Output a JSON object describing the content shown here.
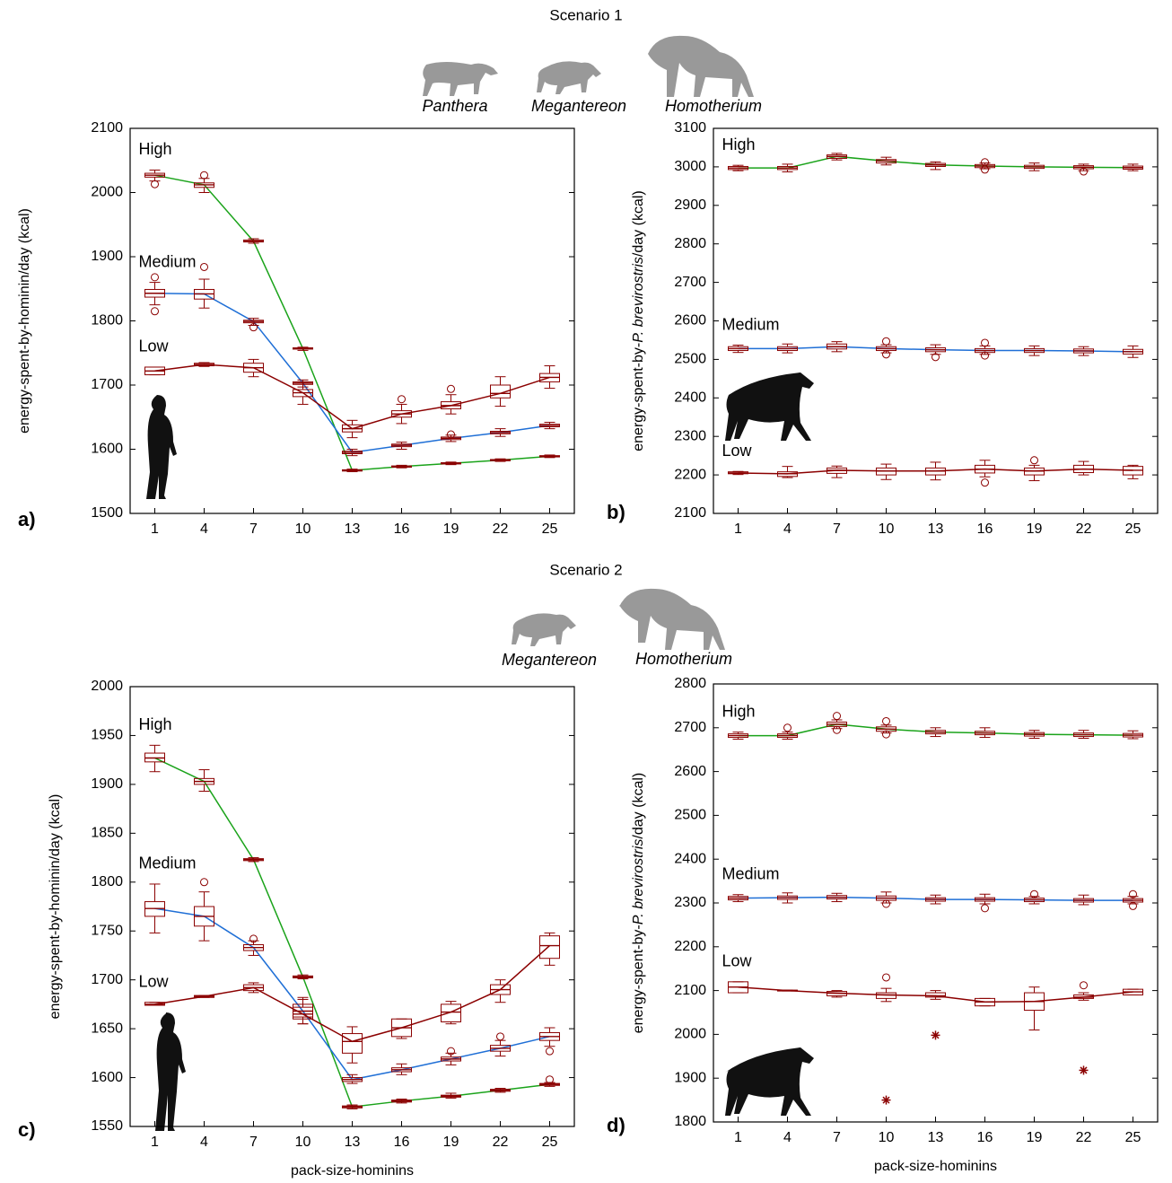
{
  "figure": {
    "scenario_1": {
      "title": "Scenario 1",
      "animals": [
        "Panthera",
        "Megantereon",
        "Homotherium"
      ]
    },
    "scenario_2": {
      "title": "Scenario 2",
      "animals": [
        "Megantereon",
        "Homotherium"
      ]
    }
  },
  "chart_data": [
    {
      "type": "box",
      "panel_label": "a)",
      "y_label": {
        "prefix": "energy-spent-by-hominin/day (kcal)"
      },
      "categories": [
        1,
        4,
        7,
        10,
        13,
        16,
        19,
        22,
        25
      ],
      "ylim": [
        1500,
        2100
      ],
      "yticks": [
        1500,
        1600,
        1700,
        1800,
        1900,
        2000,
        2100
      ],
      "box_color": "#8b0000",
      "series": [
        {
          "name": "High",
          "color": "#1aa31a",
          "values": [
            2027,
            2012,
            1924,
            1757,
            1567,
            1573,
            1578,
            1583,
            1589
          ],
          "q1": [
            2024,
            2008,
            1923,
            1756,
            1566,
            1572,
            1577,
            1582,
            1588
          ],
          "q3": [
            2030,
            2015,
            1926,
            1758,
            1568,
            1574,
            1579,
            1584,
            1590
          ],
          "whisker_low": [
            2018,
            2000,
            1921,
            1754,
            1565,
            1571,
            1576,
            1581,
            1587
          ],
          "whisker_high": [
            2035,
            2022,
            1928,
            1759,
            1569,
            1575,
            1580,
            1585,
            1591
          ]
        },
        {
          "name": "Medium",
          "color": "#1f6fd6",
          "values": [
            1843,
            1842,
            1799,
            1703,
            1595,
            1606,
            1617,
            1626,
            1637
          ],
          "q1": [
            1837,
            1834,
            1797,
            1701,
            1593,
            1604,
            1615,
            1624,
            1635
          ],
          "q3": [
            1849,
            1849,
            1801,
            1705,
            1597,
            1608,
            1619,
            1628,
            1639
          ],
          "whisker_low": [
            1825,
            1820,
            1793,
            1697,
            1590,
            1600,
            1612,
            1620,
            1632
          ],
          "whisker_high": [
            1860,
            1865,
            1804,
            1708,
            1600,
            1611,
            1622,
            1632,
            1642
          ]
        },
        {
          "name": "Low",
          "color": "#8b0000",
          "values": [
            1722,
            1732,
            1727,
            1688,
            1632,
            1655,
            1668,
            1687,
            1712
          ],
          "q1": [
            1716,
            1730,
            1720,
            1682,
            1627,
            1650,
            1663,
            1680,
            1705
          ],
          "q3": [
            1728,
            1734,
            1734,
            1693,
            1638,
            1660,
            1674,
            1700,
            1718
          ],
          "whisker_low": [
            1716,
            1729,
            1713,
            1670,
            1618,
            1640,
            1655,
            1667,
            1695
          ],
          "whisker_high": [
            1728,
            1735,
            1740,
            1705,
            1645,
            1670,
            1685,
            1713,
            1730
          ]
        }
      ],
      "outliers": [
        {
          "x": 1,
          "y": 2013,
          "marker": "circle"
        },
        {
          "x": 4,
          "y": 2027,
          "marker": "circle"
        },
        {
          "x": 1,
          "y": 1868,
          "marker": "circle"
        },
        {
          "x": 1,
          "y": 1815,
          "marker": "circle"
        },
        {
          "x": 4,
          "y": 1884,
          "marker": "circle"
        },
        {
          "x": 7,
          "y": 1790,
          "marker": "circle"
        },
        {
          "x": 16,
          "y": 1678,
          "marker": "circle"
        },
        {
          "x": 19,
          "y": 1694,
          "marker": "circle"
        },
        {
          "x": 19,
          "y": 1623,
          "marker": "circle"
        }
      ]
    },
    {
      "type": "box",
      "panel_label": "b)",
      "y_label": {
        "prefix": "energy-spent-by-",
        "italic": "P. brevirostris",
        "suffix": "/day (kcal)"
      },
      "categories": [
        1,
        4,
        7,
        10,
        13,
        16,
        19,
        22,
        25
      ],
      "ylim": [
        2100,
        3100
      ],
      "yticks": [
        2100,
        2200,
        2300,
        2400,
        2500,
        2600,
        2700,
        2800,
        2900,
        3000,
        3100
      ],
      "box_color": "#8b0000",
      "series": [
        {
          "name": "High",
          "color": "#1aa31a",
          "values": [
            2997,
            2997,
            3027,
            3015,
            3005,
            3002,
            3000,
            2999,
            2998
          ],
          "q1": [
            2993,
            2993,
            3022,
            3010,
            3001,
            2998,
            2996,
            2995,
            2994
          ],
          "q3": [
            3001,
            3001,
            3031,
            3019,
            3009,
            3006,
            3004,
            3003,
            3002
          ],
          "whisker_low": [
            2990,
            2987,
            3018,
            3005,
            2993,
            2995,
            2990,
            2990,
            2990
          ],
          "whisker_high": [
            3004,
            3007,
            3035,
            3025,
            3013,
            3010,
            3010,
            3007,
            3007
          ]
        },
        {
          "name": "Medium",
          "color": "#1f6fd6",
          "values": [
            2528,
            2528,
            2533,
            2528,
            2525,
            2523,
            2523,
            2522,
            2520
          ],
          "q1": [
            2523,
            2523,
            2527,
            2523,
            2520,
            2518,
            2518,
            2517,
            2514
          ],
          "q3": [
            2533,
            2533,
            2540,
            2533,
            2530,
            2528,
            2528,
            2527,
            2526
          ],
          "whisker_low": [
            2518,
            2517,
            2520,
            2517,
            2513,
            2513,
            2510,
            2510,
            2505
          ],
          "whisker_high": [
            2537,
            2540,
            2546,
            2538,
            2538,
            2535,
            2535,
            2533,
            2535
          ]
        },
        {
          "name": "Low",
          "color": "#8b0000",
          "values": [
            2205,
            2203,
            2212,
            2210,
            2210,
            2215,
            2210,
            2215,
            2212
          ],
          "q1": [
            2203,
            2196,
            2204,
            2200,
            2200,
            2205,
            2200,
            2206,
            2200
          ],
          "q3": [
            2208,
            2208,
            2218,
            2218,
            2218,
            2225,
            2218,
            2225,
            2222
          ],
          "whisker_low": [
            2201,
            2193,
            2193,
            2188,
            2187,
            2195,
            2185,
            2200,
            2190
          ],
          "whisker_high": [
            2209,
            2222,
            2223,
            2228,
            2233,
            2238,
            2225,
            2235,
            2225
          ]
        }
      ],
      "outliers": [
        {
          "x": 16,
          "y": 3012,
          "marker": "circle"
        },
        {
          "x": 16,
          "y": 2993,
          "marker": "circle"
        },
        {
          "x": 22,
          "y": 2988,
          "marker": "circle"
        },
        {
          "x": 10,
          "y": 2547,
          "marker": "circle"
        },
        {
          "x": 10,
          "y": 2513,
          "marker": "circle"
        },
        {
          "x": 13,
          "y": 2506,
          "marker": "circle"
        },
        {
          "x": 16,
          "y": 2543,
          "marker": "circle"
        },
        {
          "x": 16,
          "y": 2510,
          "marker": "circle"
        },
        {
          "x": 16,
          "y": 2180,
          "marker": "circle"
        },
        {
          "x": 19,
          "y": 2238,
          "marker": "circle"
        }
      ]
    },
    {
      "type": "box",
      "panel_label": "c)",
      "y_label": {
        "prefix": "energy-spent-by-hominin/day (kcal)"
      },
      "x_label": "pack-size-hominins",
      "categories": [
        1,
        4,
        7,
        10,
        13,
        16,
        19,
        22,
        25
      ],
      "ylim": [
        1550,
        2000
      ],
      "yticks": [
        1550,
        1600,
        1650,
        1700,
        1750,
        1800,
        1850,
        1900,
        1950,
        2000
      ],
      "box_color": "#8b0000",
      "series": [
        {
          "name": "High",
          "color": "#1aa31a",
          "values": [
            1927,
            1903,
            1823,
            1703,
            1570,
            1576,
            1581,
            1587,
            1593
          ],
          "q1": [
            1923,
            1900,
            1822,
            1702,
            1569,
            1575,
            1580,
            1586,
            1592
          ],
          "q3": [
            1932,
            1906,
            1824,
            1704,
            1571,
            1577,
            1582,
            1588,
            1594
          ],
          "whisker_low": [
            1913,
            1893,
            1821,
            1701,
            1568,
            1574,
            1579,
            1585,
            1591
          ],
          "whisker_high": [
            1940,
            1915,
            1825,
            1705,
            1572,
            1578,
            1584,
            1589,
            1595
          ]
        },
        {
          "name": "Medium",
          "color": "#1f6fd6",
          "values": [
            1773,
            1765,
            1733,
            1668,
            1598,
            1608,
            1619,
            1630,
            1642
          ],
          "q1": [
            1765,
            1755,
            1730,
            1662,
            1596,
            1606,
            1617,
            1627,
            1638
          ],
          "q3": [
            1780,
            1775,
            1736,
            1675,
            1600,
            1610,
            1621,
            1633,
            1646
          ],
          "whisker_low": [
            1748,
            1740,
            1725,
            1655,
            1594,
            1603,
            1613,
            1622,
            1632
          ],
          "whisker_high": [
            1798,
            1790,
            1740,
            1682,
            1603,
            1614,
            1625,
            1638,
            1651
          ]
        },
        {
          "name": "Low",
          "color": "#8b0000",
          "values": [
            1675,
            1683,
            1692,
            1665,
            1637,
            1651,
            1667,
            1690,
            1735
          ],
          "q1": [
            1674,
            1682,
            1689,
            1660,
            1625,
            1642,
            1657,
            1685,
            1722
          ],
          "q3": [
            1677,
            1684,
            1695,
            1672,
            1645,
            1660,
            1675,
            1695,
            1745
          ],
          "whisker_low": [
            1674,
            1682,
            1687,
            1655,
            1615,
            1640,
            1655,
            1677,
            1715
          ],
          "whisker_high": [
            1677,
            1684,
            1697,
            1680,
            1652,
            1660,
            1678,
            1700,
            1748
          ]
        }
      ],
      "outliers": [
        {
          "x": 4,
          "y": 1800,
          "marker": "circle"
        },
        {
          "x": 7,
          "y": 1742,
          "marker": "circle"
        },
        {
          "x": 19,
          "y": 1627,
          "marker": "circle"
        },
        {
          "x": 22,
          "y": 1642,
          "marker": "circle"
        },
        {
          "x": 25,
          "y": 1627,
          "marker": "circle"
        },
        {
          "x": 25,
          "y": 1598,
          "marker": "circle"
        }
      ]
    },
    {
      "type": "box",
      "panel_label": "d)",
      "y_label": {
        "prefix": "energy-spent-by-",
        "italic": "P. brevirostris",
        "suffix": "/day (kcal)"
      },
      "x_label": "pack-size-hominins",
      "categories": [
        1,
        4,
        7,
        10,
        13,
        16,
        19,
        22,
        25
      ],
      "ylim": [
        1800,
        2800
      ],
      "yticks": [
        1800,
        1900,
        2000,
        2100,
        2200,
        2300,
        2400,
        2500,
        2600,
        2700,
        2800
      ],
      "box_color": "#8b0000",
      "series": [
        {
          "name": "High",
          "color": "#1aa31a",
          "values": [
            2682,
            2682,
            2708,
            2697,
            2690,
            2688,
            2685,
            2684,
            2683
          ],
          "q1": [
            2678,
            2678,
            2703,
            2692,
            2686,
            2684,
            2681,
            2680,
            2679
          ],
          "q3": [
            2686,
            2686,
            2713,
            2702,
            2694,
            2692,
            2689,
            2688,
            2687
          ],
          "whisker_low": [
            2674,
            2674,
            2698,
            2688,
            2680,
            2678,
            2676,
            2676,
            2675
          ],
          "whisker_high": [
            2690,
            2690,
            2718,
            2706,
            2700,
            2700,
            2694,
            2694,
            2693
          ]
        },
        {
          "name": "Medium",
          "color": "#1f6fd6",
          "values": [
            2311,
            2312,
            2313,
            2311,
            2308,
            2308,
            2307,
            2306,
            2306
          ],
          "q1": [
            2307,
            2308,
            2309,
            2306,
            2304,
            2304,
            2303,
            2302,
            2302
          ],
          "q3": [
            2315,
            2316,
            2317,
            2316,
            2312,
            2312,
            2311,
            2310,
            2310
          ],
          "whisker_low": [
            2303,
            2300,
            2303,
            2300,
            2298,
            2298,
            2298,
            2296,
            2298
          ],
          "whisker_high": [
            2319,
            2323,
            2322,
            2325,
            2318,
            2320,
            2315,
            2318,
            2315
          ]
        },
        {
          "name": "Low",
          "color": "#8b0000",
          "values": [
            2108,
            2100,
            2094,
            2090,
            2088,
            2074,
            2075,
            2085,
            2097
          ],
          "q1": [
            2095,
            2099,
            2088,
            2082,
            2085,
            2065,
            2055,
            2082,
            2090
          ],
          "q3": [
            2120,
            2101,
            2098,
            2095,
            2095,
            2082,
            2095,
            2090,
            2103
          ],
          "whisker_low": [
            2095,
            2099,
            2085,
            2075,
            2080,
            2065,
            2010,
            2078,
            2090
          ],
          "whisker_high": [
            2120,
            2101,
            2100,
            2105,
            2100,
            2082,
            2108,
            2095,
            2103
          ]
        }
      ],
      "outliers": [
        {
          "x": 4,
          "y": 2700,
          "marker": "circle"
        },
        {
          "x": 7,
          "y": 2727,
          "marker": "circle"
        },
        {
          "x": 7,
          "y": 2695,
          "marker": "circle"
        },
        {
          "x": 10,
          "y": 2715,
          "marker": "circle"
        },
        {
          "x": 10,
          "y": 2685,
          "marker": "circle"
        },
        {
          "x": 10,
          "y": 2298,
          "marker": "circle"
        },
        {
          "x": 16,
          "y": 2288,
          "marker": "circle"
        },
        {
          "x": 19,
          "y": 2320,
          "marker": "circle"
        },
        {
          "x": 25,
          "y": 2320,
          "marker": "circle"
        },
        {
          "x": 25,
          "y": 2293,
          "marker": "circle"
        },
        {
          "x": 10,
          "y": 2130,
          "marker": "circle"
        },
        {
          "x": 22,
          "y": 2112,
          "marker": "circle"
        },
        {
          "x": 13,
          "y": 1998,
          "marker": "star"
        },
        {
          "x": 10,
          "y": 1850,
          "marker": "star"
        },
        {
          "x": 22,
          "y": 1918,
          "marker": "star"
        }
      ]
    }
  ]
}
